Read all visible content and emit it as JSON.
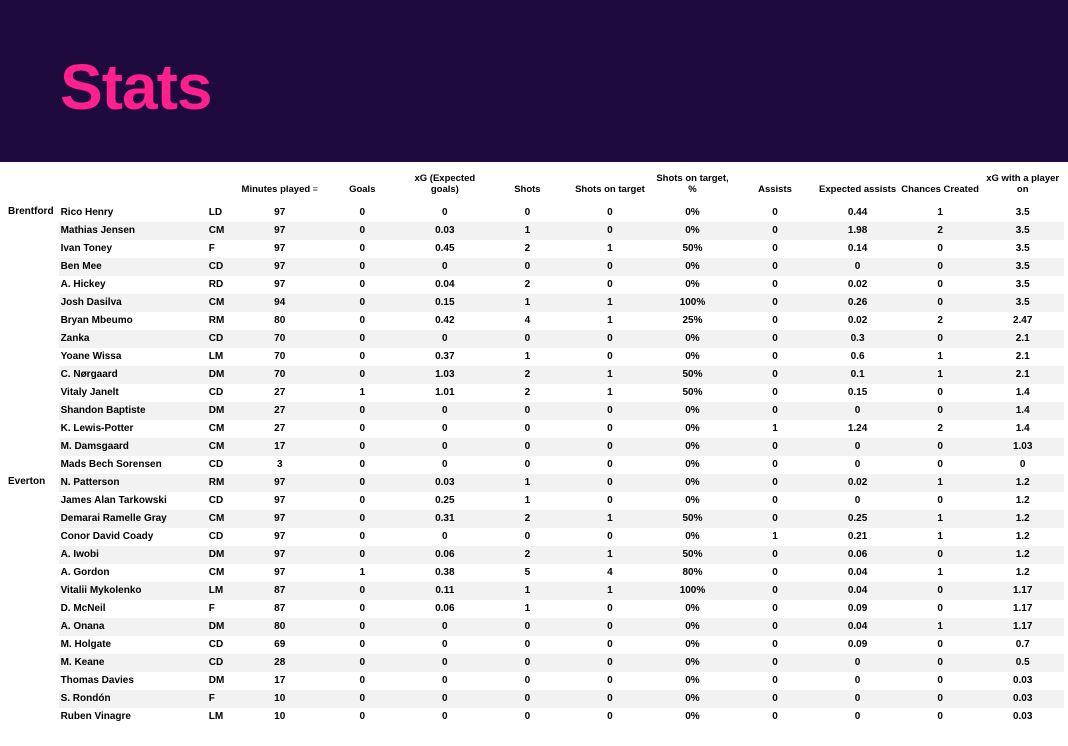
{
  "header": {
    "title": "Stats"
  },
  "colors": {
    "header_bg": "#1e0a3c",
    "title_color": "#ff1f8f",
    "row_alt_bg": "#f2f2f2",
    "row_bg": "#ffffff",
    "text": "#000000"
  },
  "table": {
    "columns": [
      "Minutes played",
      "Goals",
      "xG (Expected goals)",
      "Shots",
      "Shots on target",
      "Shots on target, %",
      "Assists",
      "Expected assists",
      "Chances Created",
      "xG with a player on"
    ],
    "sorted_column_index": 0,
    "teams": [
      {
        "name": "Brentford",
        "players": [
          {
            "name": "Rico Henry",
            "pos": "LD",
            "stats": [
              "97",
              "0",
              "0",
              "0",
              "0",
              "0%",
              "0",
              "0.44",
              "1",
              "3.5"
            ]
          },
          {
            "name": "Mathias Jensen",
            "pos": "CM",
            "stats": [
              "97",
              "0",
              "0.03",
              "1",
              "0",
              "0%",
              "0",
              "1.98",
              "2",
              "3.5"
            ]
          },
          {
            "name": "Ivan Toney",
            "pos": "F",
            "stats": [
              "97",
              "0",
              "0.45",
              "2",
              "1",
              "50%",
              "0",
              "0.14",
              "0",
              "3.5"
            ]
          },
          {
            "name": "Ben Mee",
            "pos": "CD",
            "stats": [
              "97",
              "0",
              "0",
              "0",
              "0",
              "0%",
              "0",
              "0",
              "0",
              "3.5"
            ]
          },
          {
            "name": "A. Hickey",
            "pos": "RD",
            "stats": [
              "97",
              "0",
              "0.04",
              "2",
              "0",
              "0%",
              "0",
              "0.02",
              "0",
              "3.5"
            ]
          },
          {
            "name": "Josh Dasilva",
            "pos": "CM",
            "stats": [
              "94",
              "0",
              "0.15",
              "1",
              "1",
              "100%",
              "0",
              "0.26",
              "0",
              "3.5"
            ]
          },
          {
            "name": "Bryan Mbeumo",
            "pos": "RM",
            "stats": [
              "80",
              "0",
              "0.42",
              "4",
              "1",
              "25%",
              "0",
              "0.02",
              "2",
              "2.47"
            ]
          },
          {
            "name": "Zanka",
            "pos": "CD",
            "stats": [
              "70",
              "0",
              "0",
              "0",
              "0",
              "0%",
              "0",
              "0.3",
              "0",
              "2.1"
            ]
          },
          {
            "name": "Yoane Wissa",
            "pos": "LM",
            "stats": [
              "70",
              "0",
              "0.37",
              "1",
              "0",
              "0%",
              "0",
              "0.6",
              "1",
              "2.1"
            ]
          },
          {
            "name": "C. Nørgaard",
            "pos": "DM",
            "stats": [
              "70",
              "0",
              "1.03",
              "2",
              "1",
              "50%",
              "0",
              "0.1",
              "1",
              "2.1"
            ]
          },
          {
            "name": "Vitaly Janelt",
            "pos": "CD",
            "stats": [
              "27",
              "1",
              "1.01",
              "2",
              "1",
              "50%",
              "0",
              "0.15",
              "0",
              "1.4"
            ]
          },
          {
            "name": "Shandon Baptiste",
            "pos": "DM",
            "stats": [
              "27",
              "0",
              "0",
              "0",
              "0",
              "0%",
              "0",
              "0",
              "0",
              "1.4"
            ]
          },
          {
            "name": "K. Lewis-Potter",
            "pos": "CM",
            "stats": [
              "27",
              "0",
              "0",
              "0",
              "0",
              "0%",
              "1",
              "1.24",
              "2",
              "1.4"
            ]
          },
          {
            "name": "M. Damsgaard",
            "pos": "CM",
            "stats": [
              "17",
              "0",
              "0",
              "0",
              "0",
              "0%",
              "0",
              "0",
              "0",
              "1.03"
            ]
          },
          {
            "name": "Mads Bech Sorensen",
            "pos": "CD",
            "stats": [
              "3",
              "0",
              "0",
              "0",
              "0",
              "0%",
              "0",
              "0",
              "0",
              "0"
            ]
          }
        ]
      },
      {
        "name": "Everton",
        "players": [
          {
            "name": "N. Patterson",
            "pos": "RM",
            "stats": [
              "97",
              "0",
              "0.03",
              "1",
              "0",
              "0%",
              "0",
              "0.02",
              "1",
              "1.2"
            ]
          },
          {
            "name": "James Alan Tarkowski",
            "pos": "CD",
            "stats": [
              "97",
              "0",
              "0.25",
              "1",
              "0",
              "0%",
              "0",
              "0",
              "0",
              "1.2"
            ]
          },
          {
            "name": "Demarai Ramelle Gray",
            "pos": "CM",
            "stats": [
              "97",
              "0",
              "0.31",
              "2",
              "1",
              "50%",
              "0",
              "0.25",
              "1",
              "1.2"
            ]
          },
          {
            "name": "Conor David Coady",
            "pos": "CD",
            "stats": [
              "97",
              "0",
              "0",
              "0",
              "0",
              "0%",
              "1",
              "0.21",
              "1",
              "1.2"
            ]
          },
          {
            "name": "A. Iwobi",
            "pos": "DM",
            "stats": [
              "97",
              "0",
              "0.06",
              "2",
              "1",
              "50%",
              "0",
              "0.06",
              "0",
              "1.2"
            ]
          },
          {
            "name": "A. Gordon",
            "pos": "CM",
            "stats": [
              "97",
              "1",
              "0.38",
              "5",
              "4",
              "80%",
              "0",
              "0.04",
              "1",
              "1.2"
            ]
          },
          {
            "name": "Vitalii Mykolenko",
            "pos": "LM",
            "stats": [
              "87",
              "0",
              "0.11",
              "1",
              "1",
              "100%",
              "0",
              "0.04",
              "0",
              "1.17"
            ]
          },
          {
            "name": "D. McNeil",
            "pos": "F",
            "stats": [
              "87",
              "0",
              "0.06",
              "1",
              "0",
              "0%",
              "0",
              "0.09",
              "0",
              "1.17"
            ]
          },
          {
            "name": "A. Onana",
            "pos": "DM",
            "stats": [
              "80",
              "0",
              "0",
              "0",
              "0",
              "0%",
              "0",
              "0.04",
              "1",
              "1.17"
            ]
          },
          {
            "name": "M. Holgate",
            "pos": "CD",
            "stats": [
              "69",
              "0",
              "0",
              "0",
              "0",
              "0%",
              "0",
              "0.09",
              "0",
              "0.7"
            ]
          },
          {
            "name": "M. Keane",
            "pos": "CD",
            "stats": [
              "28",
              "0",
              "0",
              "0",
              "0",
              "0%",
              "0",
              "0",
              "0",
              "0.5"
            ]
          },
          {
            "name": "Thomas Davies",
            "pos": "DM",
            "stats": [
              "17",
              "0",
              "0",
              "0",
              "0",
              "0%",
              "0",
              "0",
              "0",
              "0.03"
            ]
          },
          {
            "name": "S. Rondón",
            "pos": "F",
            "stats": [
              "10",
              "0",
              "0",
              "0",
              "0",
              "0%",
              "0",
              "0",
              "0",
              "0.03"
            ]
          },
          {
            "name": "Ruben Vinagre",
            "pos": "LM",
            "stats": [
              "10",
              "0",
              "0",
              "0",
              "0",
              "0%",
              "0",
              "0",
              "0",
              "0.03"
            ]
          }
        ]
      }
    ]
  }
}
